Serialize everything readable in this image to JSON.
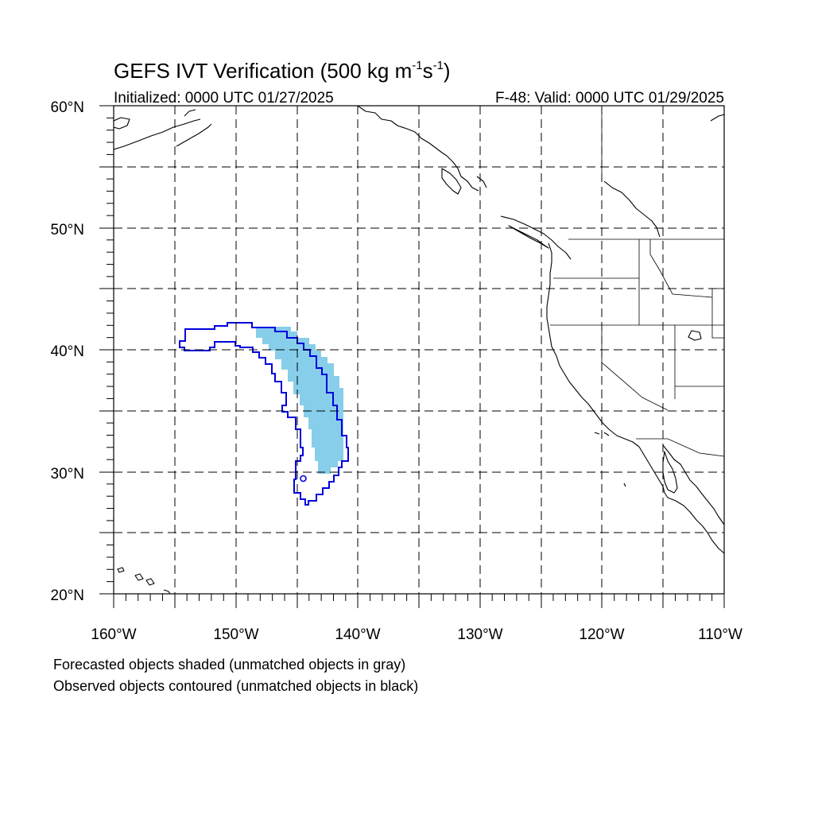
{
  "figure": {
    "title": "GEFS IVT Verification (500 kg m",
    "title_sup1": "-1",
    "title_mid": "s",
    "title_sup2": "-1",
    "title_end": ")",
    "initialized": "Initialized: 0000 UTC 01/27/2025",
    "valid": "F-48: Valid: 0000 UTC 01/29/2025",
    "caption_line1": "Forecasted objects shaded (unmatched objects in gray)",
    "caption_line2": "Observed objects contoured (unmatched objects in black)"
  },
  "map": {
    "lon_range": [
      -160,
      -110
    ],
    "lat_range": [
      20,
      60
    ],
    "lon_labels": [
      "160°W",
      "150°W",
      "140°W",
      "130°W",
      "120°W",
      "110°W"
    ],
    "lat_labels": [
      "60°N",
      "50°N",
      "40°N",
      "30°N",
      "20°N"
    ],
    "grid_spacing_deg": 5,
    "grid": "on",
    "colors": {
      "forecast_shading": "#87ceeb",
      "observed_contour": "#0000dd",
      "coastline": "#000000"
    }
  },
  "objects": {
    "forecast_object_label": "forecast-object",
    "observed_object_label": "observed-object"
  }
}
